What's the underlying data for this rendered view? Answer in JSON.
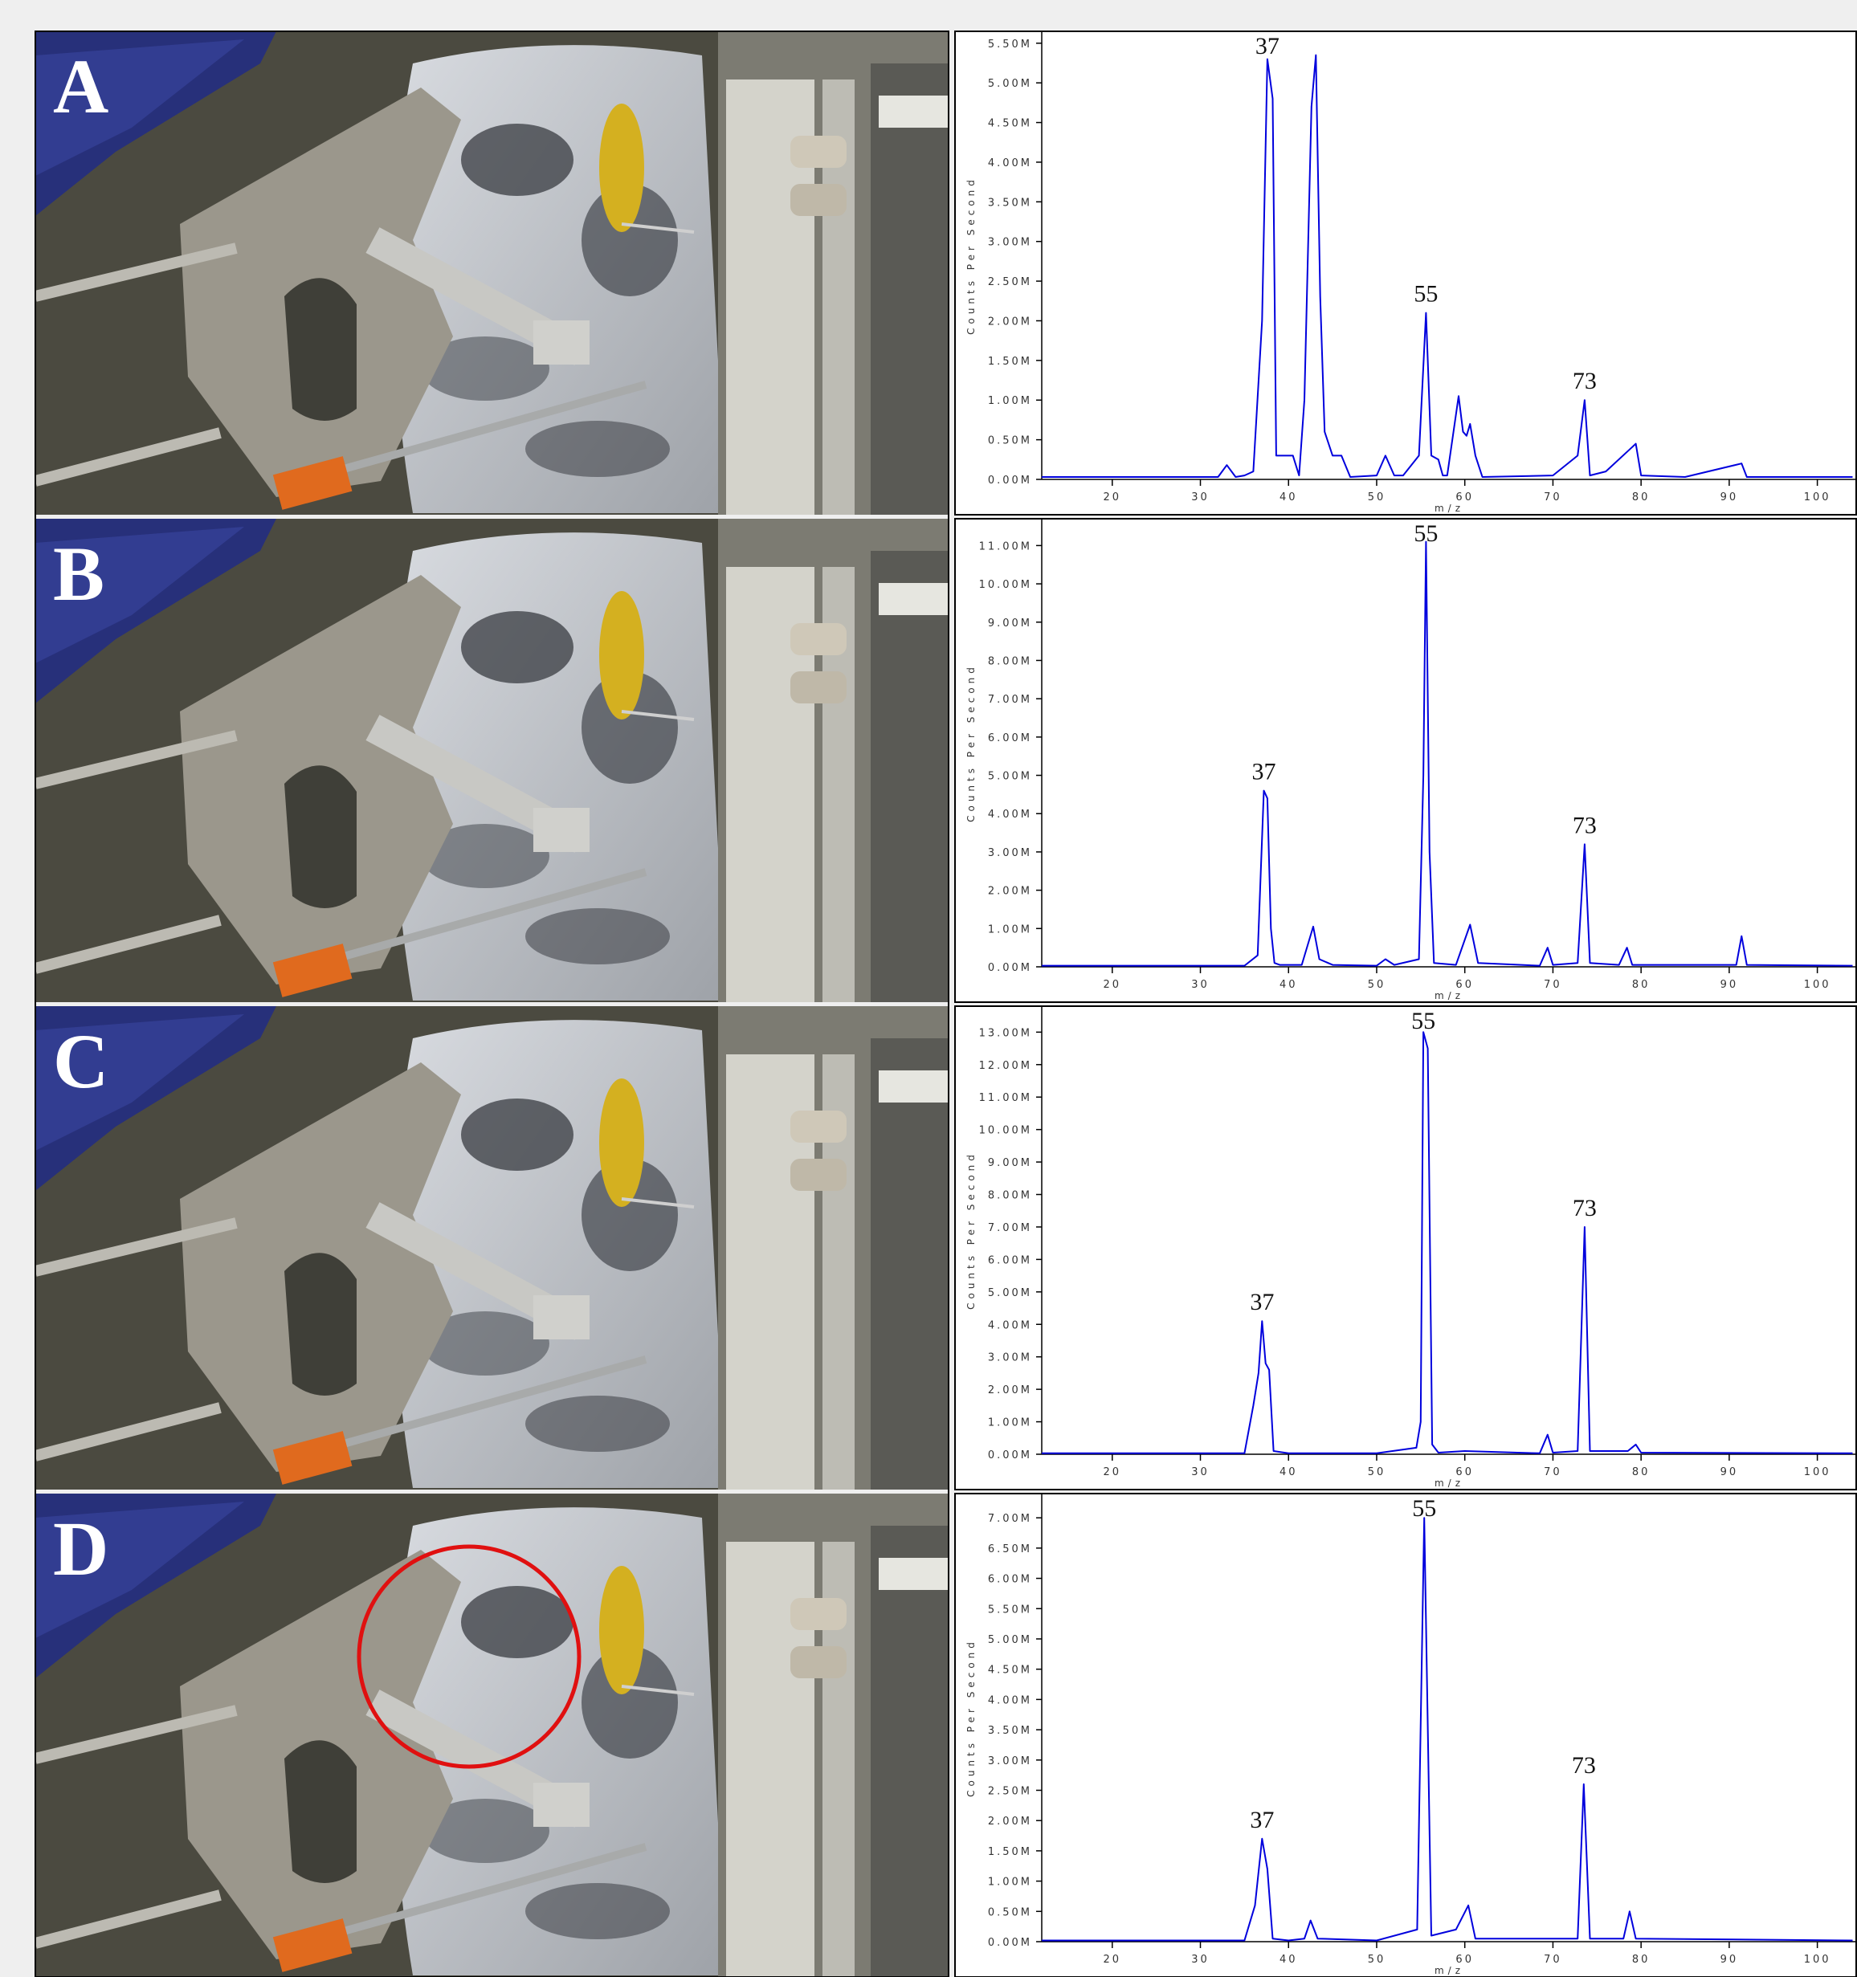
{
  "panel_labels": [
    "A",
    "B",
    "C",
    "D"
  ],
  "chart_data": [
    {
      "type": "line",
      "xlabel": "m/z",
      "ylabel": "Counts Per Second",
      "color": "#0000dd",
      "xlim": [
        12,
        104.5
      ],
      "ylim": [
        0,
        5650000.0
      ],
      "xticks": [
        20,
        30,
        40,
        50,
        60,
        70,
        80,
        90,
        100
      ],
      "yticks": [
        {
          "value": 0,
          "label": "0.00M"
        },
        {
          "value": 500000.0,
          "label": "0.50M"
        },
        {
          "value": 1000000.0,
          "label": "1.00M"
        },
        {
          "value": 1500000.0,
          "label": "1.50M"
        },
        {
          "value": 2000000.0,
          "label": "2.00M"
        },
        {
          "value": 2500000.0,
          "label": "2.50M"
        },
        {
          "value": 3000000.0,
          "label": "3.00M"
        },
        {
          "value": 3500000.0,
          "label": "3.50M"
        },
        {
          "value": 4000000.0,
          "label": "4.00M"
        },
        {
          "value": 4500000.0,
          "label": "4.50M"
        },
        {
          "value": 5000000.0,
          "label": "5.00M"
        },
        {
          "value": 5500000.0,
          "label": "5.50M"
        }
      ],
      "x": [
        12,
        32,
        33,
        34,
        35,
        36,
        37,
        37.6,
        38.2,
        38.6,
        39.5,
        40.5,
        41.2,
        41.8,
        42.6,
        43.1,
        43.6,
        44.1,
        45,
        46,
        47,
        50,
        51,
        52,
        53,
        54.8,
        55.6,
        56.2,
        57,
        57.5,
        58,
        59.3,
        59.8,
        60.2,
        60.6,
        61.2,
        62,
        70,
        72.8,
        73.6,
        74.2,
        76,
        79.4,
        80,
        85,
        91.4,
        92,
        100,
        104
      ],
      "values": [
        30000.0,
        30000.0,
        180000.0,
        30000.0,
        50000.0,
        100000.0,
        2000000.0,
        5300000.0,
        4800000.0,
        300000.0,
        300000.0,
        300000.0,
        50000.0,
        1000000.0,
        4700000.0,
        5350000.0,
        2300000.0,
        600000.0,
        300000.0,
        300000.0,
        30000.0,
        50000.0,
        300000.0,
        50000.0,
        50000.0,
        300000.0,
        2100000.0,
        300000.0,
        250000.0,
        50000.0,
        50000.0,
        1050000.0,
        600000.0,
        550000.0,
        700000.0,
        300000.0,
        30000.0,
        50000.0,
        300000.0,
        1000000.0,
        50000.0,
        100000.0,
        450000.0,
        50000.0,
        30000.0,
        200000.0,
        30000.0,
        30000.0,
        30000.0
      ],
      "annotations": [
        {
          "text": "37",
          "x": 37.6
        },
        {
          "text": "55",
          "x": 55.6
        },
        {
          "text": "73",
          "x": 73.6
        }
      ]
    },
    {
      "type": "line",
      "xlabel": "m/z",
      "ylabel": "Counts Per Second",
      "color": "#0000dd",
      "xlim": [
        12,
        104.5
      ],
      "ylim": [
        0,
        11700000.0
      ],
      "xticks": [
        20,
        30,
        40,
        50,
        60,
        70,
        80,
        90,
        100
      ],
      "yticks": [
        {
          "value": 0,
          "label": "0.00M"
        },
        {
          "value": 1000000.0,
          "label": "1.00M"
        },
        {
          "value": 2000000.0,
          "label": "2.00M"
        },
        {
          "value": 3000000.0,
          "label": "3.00M"
        },
        {
          "value": 4000000.0,
          "label": "4.00M"
        },
        {
          "value": 5000000.0,
          "label": "5.00M"
        },
        {
          "value": 6000000.0,
          "label": "6.00M"
        },
        {
          "value": 7000000.0,
          "label": "7.00M"
        },
        {
          "value": 8000000.0,
          "label": "8.00M"
        },
        {
          "value": 9000000.0,
          "label": "9.00M"
        },
        {
          "value": 10000000.0,
          "label": "10.00M"
        },
        {
          "value": 11000000.0,
          "label": "11.00M"
        }
      ],
      "x": [
        12,
        35,
        36.5,
        37.2,
        37.6,
        38,
        38.4,
        39,
        41.5,
        42.8,
        43.5,
        45,
        50,
        51,
        52,
        54.8,
        55.3,
        55.6,
        56,
        56.5,
        59,
        60.6,
        61.5,
        68.5,
        69.4,
        70,
        72.8,
        73.6,
        74.2,
        77.5,
        78.4,
        79,
        90.8,
        91.4,
        92,
        104
      ],
      "values": [
        30000.0,
        30000.0,
        300000.0,
        4600000.0,
        4400000.0,
        1000000.0,
        100000.0,
        50000.0,
        50000.0,
        1050000.0,
        200000.0,
        50000.0,
        30000.0,
        200000.0,
        50000.0,
        200000.0,
        5000000.0,
        11100000.0,
        3000000.0,
        100000.0,
        50000.0,
        1100000.0,
        100000.0,
        30000.0,
        500000.0,
        50000.0,
        100000.0,
        3200000.0,
        100000.0,
        50000.0,
        500000.0,
        50000.0,
        50000.0,
        800000.0,
        50000.0,
        30000.0
      ],
      "annotations": [
        {
          "text": "37",
          "x": 37.2
        },
        {
          "text": "55",
          "x": 55.6
        },
        {
          "text": "73",
          "x": 73.6
        }
      ]
    },
    {
      "type": "line",
      "xlabel": "m/z",
      "ylabel": "Counts Per Second",
      "color": "#0000dd",
      "xlim": [
        12,
        104.5
      ],
      "ylim": [
        0,
        13800000.0
      ],
      "xticks": [
        20,
        30,
        40,
        50,
        60,
        70,
        80,
        90,
        100
      ],
      "yticks": [
        {
          "value": 0,
          "label": "0.00M"
        },
        {
          "value": 1000000.0,
          "label": "1.00M"
        },
        {
          "value": 2000000.0,
          "label": "2.00M"
        },
        {
          "value": 3000000.0,
          "label": "3.00M"
        },
        {
          "value": 4000000.0,
          "label": "4.00M"
        },
        {
          "value": 5000000.0,
          "label": "5.00M"
        },
        {
          "value": 6000000.0,
          "label": "6.00M"
        },
        {
          "value": 7000000.0,
          "label": "7.00M"
        },
        {
          "value": 8000000.0,
          "label": "8.00M"
        },
        {
          "value": 9000000.0,
          "label": "9.00M"
        },
        {
          "value": 10000000.0,
          "label": "10.00M"
        },
        {
          "value": 11000000.0,
          "label": "11.00M"
        },
        {
          "value": 12000000.0,
          "label": "12.00M"
        },
        {
          "value": 13000000.0,
          "label": "13.00M"
        }
      ],
      "x": [
        12,
        35,
        36,
        36.6,
        37,
        37.4,
        37.8,
        38.3,
        40,
        50,
        54.5,
        55,
        55.3,
        55.8,
        56.3,
        57,
        60,
        68.5,
        69.4,
        70,
        72.8,
        73.6,
        74.2,
        78.5,
        79.4,
        80,
        104
      ],
      "values": [
        30000.0,
        30000.0,
        1500000.0,
        2500000.0,
        4100000.0,
        2800000.0,
        2600000.0,
        100000.0,
        30000.0,
        30000.0,
        200000.0,
        1000000.0,
        13000000.0,
        12500000.0,
        300000.0,
        50000.0,
        100000.0,
        30000.0,
        600000.0,
        50000.0,
        100000.0,
        7000000.0,
        100000.0,
        100000.0,
        300000.0,
        50000.0,
        30000.0
      ],
      "annotations": [
        {
          "text": "37",
          "x": 37
        },
        {
          "text": "55",
          "x": 55.3
        },
        {
          "text": "73",
          "x": 73.6
        }
      ]
    },
    {
      "type": "line",
      "xlabel": "m/z",
      "ylabel": "Counts Per Second",
      "color": "#0000dd",
      "xlim": [
        12,
        104.5
      ],
      "ylim": [
        0,
        7400000.0
      ],
      "xticks": [
        20,
        30,
        40,
        50,
        60,
        70,
        80,
        90,
        100
      ],
      "yticks": [
        {
          "value": 0,
          "label": "0.00M"
        },
        {
          "value": 500000.0,
          "label": "0.50M"
        },
        {
          "value": 1000000.0,
          "label": "1.00M"
        },
        {
          "value": 1500000.0,
          "label": "1.50M"
        },
        {
          "value": 2000000.0,
          "label": "2.00M"
        },
        {
          "value": 2500000.0,
          "label": "2.50M"
        },
        {
          "value": 3000000.0,
          "label": "3.00M"
        },
        {
          "value": 3500000.0,
          "label": "3.50M"
        },
        {
          "value": 4000000.0,
          "label": "4.00M"
        },
        {
          "value": 4500000.0,
          "label": "4.50M"
        },
        {
          "value": 5000000.0,
          "label": "5.00M"
        },
        {
          "value": 5500000.0,
          "label": "5.50M"
        },
        {
          "value": 6000000.0,
          "label": "6.00M"
        },
        {
          "value": 6500000.0,
          "label": "6.50M"
        },
        {
          "value": 7000000.0,
          "label": "7.00M"
        }
      ],
      "x": [
        12,
        35,
        36.2,
        37,
        37.6,
        38.2,
        40,
        41.8,
        42.5,
        43.3,
        50,
        54.6,
        55.4,
        56.2,
        59,
        60.4,
        61.2,
        69.5,
        72.8,
        73.5,
        74.2,
        78,
        78.7,
        79.4,
        104
      ],
      "values": [
        20000.0,
        20000.0,
        600000.0,
        1700000.0,
        1200000.0,
        50000.0,
        20000.0,
        50000.0,
        350000.0,
        50000.0,
        20000.0,
        200000.0,
        7000000.0,
        100000.0,
        200000.0,
        600000.0,
        50000.0,
        50000.0,
        50000.0,
        2600000.0,
        50000.0,
        50000.0,
        500000.0,
        50000.0,
        20000.0
      ],
      "annotations": [
        {
          "text": "37",
          "x": 37
        },
        {
          "text": "55",
          "x": 55.4
        },
        {
          "text": "73",
          "x": 73.5
        }
      ]
    }
  ]
}
